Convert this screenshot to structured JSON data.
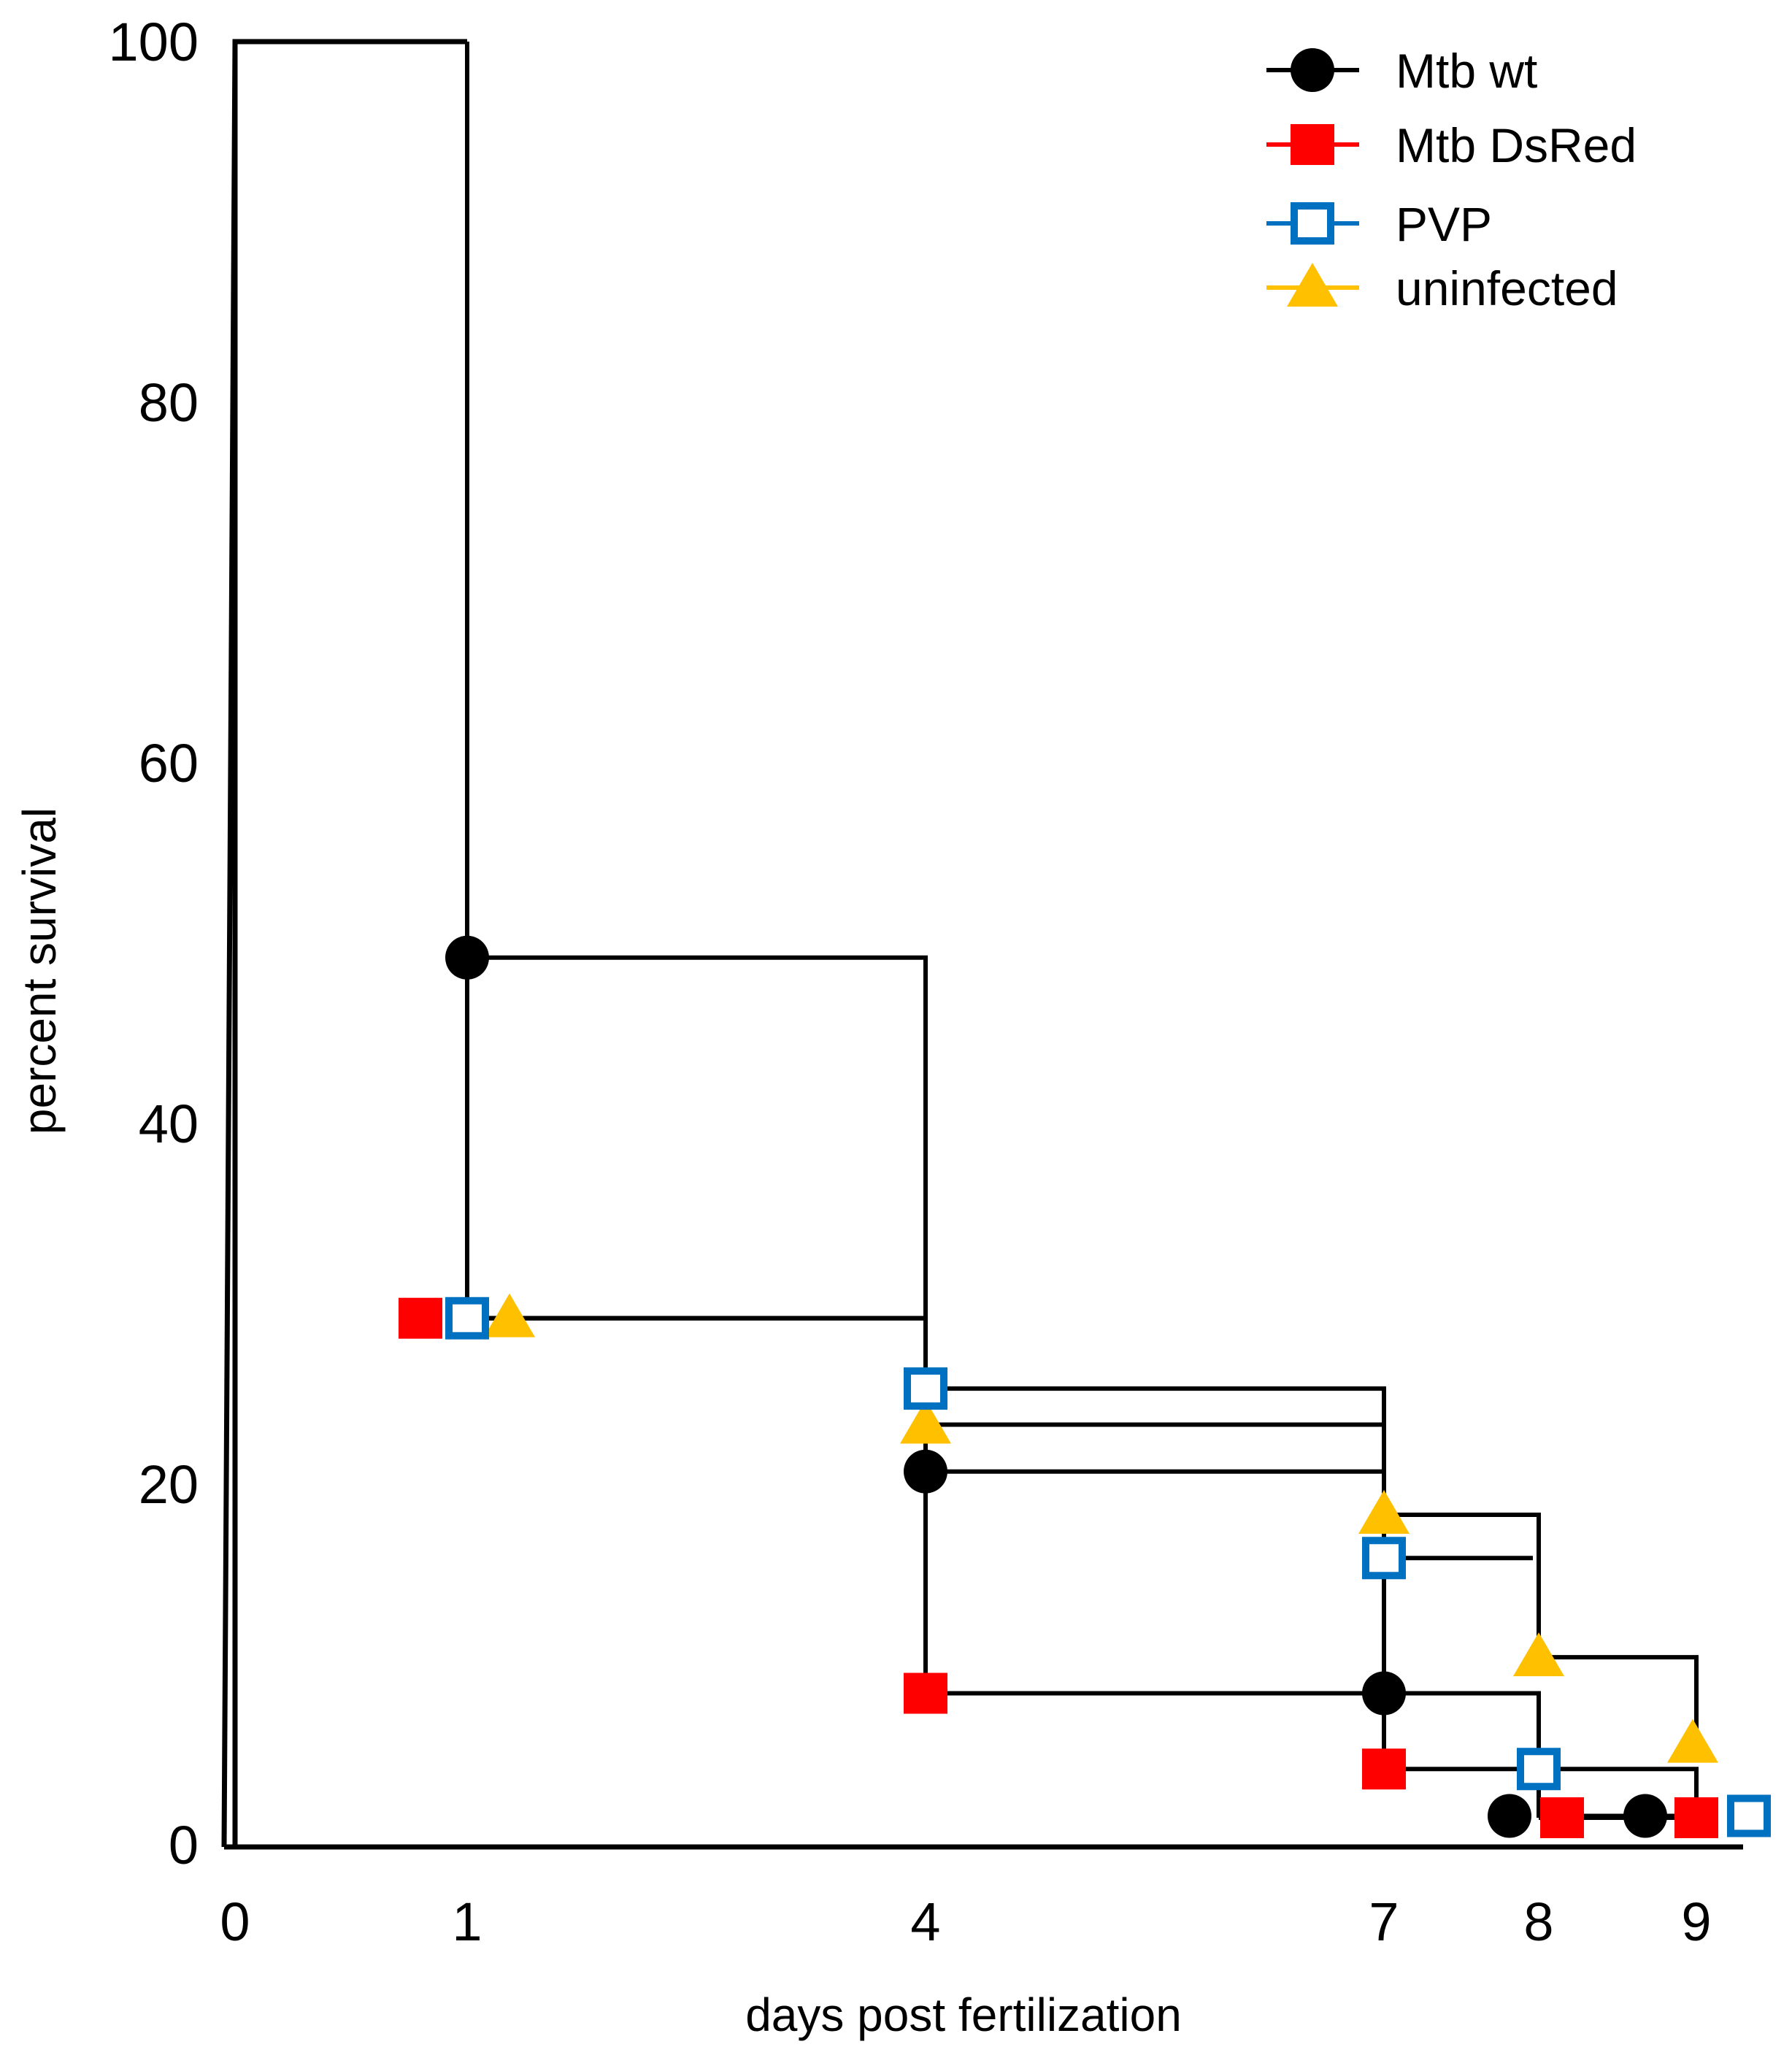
{
  "chart_data": {
    "type": "line",
    "subtype": "kaplan-meier step survival curve",
    "title": "",
    "xlabel": "days post fertilization",
    "ylabel": "percent survival",
    "xticks": [
      0,
      1,
      4,
      7,
      8,
      9
    ],
    "yticks": [
      0,
      20,
      40,
      60,
      80,
      100
    ],
    "xlim": [
      0,
      9.3
    ],
    "ylim": [
      0,
      100
    ],
    "legend_position": "top-right",
    "series": [
      {
        "name": "Mtb wt",
        "color": "#000000",
        "marker": "circle",
        "points": [
          {
            "x": 1,
            "y": 49.2
          },
          {
            "x": 4,
            "y": 20.7
          },
          {
            "x": 7,
            "y": 8.4
          },
          {
            "x": 8,
            "y": 1.6
          },
          {
            "x": 9,
            "y": 1.6
          }
        ]
      },
      {
        "name": "Mtb DsRed",
        "color": "#ff0000",
        "marker": "square",
        "points": [
          {
            "x": 1,
            "y": 29.2
          },
          {
            "x": 4,
            "y": 8.4
          },
          {
            "x": 7,
            "y": 4.2
          },
          {
            "x": 8,
            "y": 1.5
          },
          {
            "x": 9,
            "y": 1.5
          }
        ]
      },
      {
        "name": "PVP",
        "color": "#0070c0",
        "marker": "open-square",
        "points": [
          {
            "x": 1,
            "y": 29.2
          },
          {
            "x": 4,
            "y": 25.3
          },
          {
            "x": 7,
            "y": 15.9
          },
          {
            "x": 8,
            "y": 4.2
          },
          {
            "x": 9,
            "y": 1.6
          }
        ]
      },
      {
        "name": "uninfected",
        "color": "#ffc000",
        "marker": "triangle",
        "points": [
          {
            "x": 1,
            "y": 29.2
          },
          {
            "x": 4,
            "y": 23.3
          },
          {
            "x": 7,
            "y": 18.3
          },
          {
            "x": 8,
            "y": 10.4
          },
          {
            "x": 9,
            "y": 5.6
          }
        ]
      }
    ]
  }
}
